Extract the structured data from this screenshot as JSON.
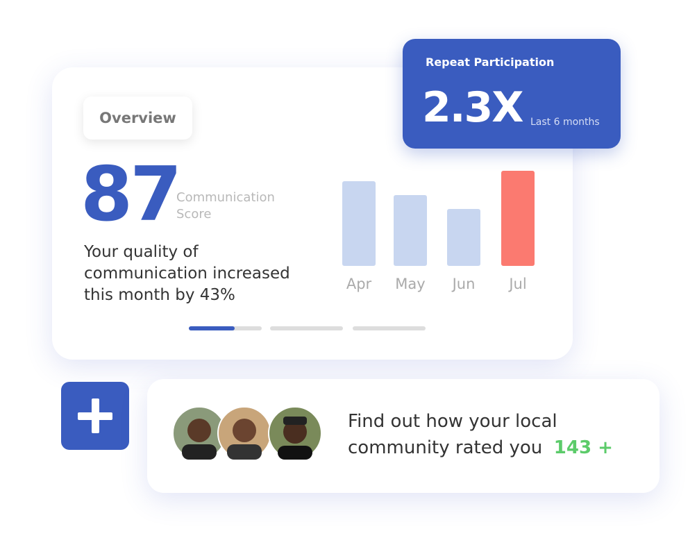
{
  "overview": {
    "tab": "Overview",
    "score": 87,
    "score_label": "Communication Score",
    "message": "Your quality of communication increased this month by 43%"
  },
  "chart_data": {
    "type": "bar",
    "categories": [
      "Apr",
      "May",
      "Jun",
      "Jul"
    ],
    "values": [
      122,
      102,
      82,
      137
    ],
    "colors": [
      "#c8d6f0",
      "#c8d6f0",
      "#c8d6f0",
      "#fb7a70"
    ]
  },
  "repeat": {
    "title": "Repeat Participation",
    "value": "2.3X",
    "period": "Last 6 months"
  },
  "community": {
    "text": "Find out how your local community rated you",
    "count": "143 +"
  }
}
